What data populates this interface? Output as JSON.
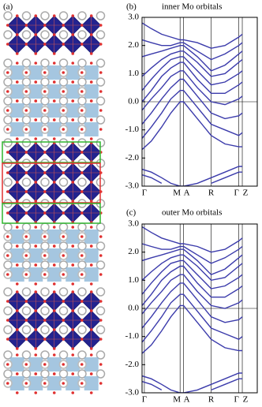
{
  "panel_a": {
    "label": "(a)"
  },
  "chart_data": [
    {
      "type": "line",
      "panel_label": "(b)",
      "title": "inner Mo orbitals",
      "color": "#3b3bab",
      "x": [
        0,
        0.08,
        0.17,
        0.25,
        0.33,
        0.36,
        0.48,
        0.6,
        0.72,
        0.84,
        0.87
      ],
      "xlim": [
        0,
        1
      ],
      "xticks": [
        {
          "value": 0.02,
          "label": "Γ"
        },
        {
          "value": 0.33,
          "label": "M"
        },
        {
          "value": 0.36,
          "label": "A"
        },
        {
          "value": 0.6,
          "label": "R"
        },
        {
          "value": 0.84,
          "label": "Γ"
        },
        {
          "value": 0.87,
          "label": "Z"
        }
      ],
      "ylim": [
        -3,
        3
      ],
      "yticks": [
        {
          "value": -3,
          "label": "-3.0"
        },
        {
          "value": -2,
          "label": "-2.0"
        },
        {
          "value": -1,
          "label": "-1.0"
        },
        {
          "value": 0,
          "label": "0.0"
        },
        {
          "value": 1,
          "label": "1.0"
        },
        {
          "value": 2,
          "label": "2.0"
        },
        {
          "value": 3,
          "label": "3.0"
        }
      ],
      "hlines": [
        0
      ],
      "series": [
        {
          "values": [
            2.8,
            2.6,
            2.4,
            2.3,
            2.2,
            2.2,
            2.1,
            1.9,
            2.0,
            2.3,
            2.4
          ]
        },
        {
          "values": [
            2.2,
            2.1,
            2.0,
            2.0,
            2.1,
            2.1,
            1.8,
            1.5,
            1.7,
            2.0,
            2.1
          ]
        },
        {
          "values": [
            1.6,
            1.7,
            1.8,
            1.9,
            2.0,
            2.0,
            1.6,
            1.1,
            1.3,
            1.7,
            1.8
          ]
        },
        {
          "values": [
            0.9,
            1.2,
            1.5,
            1.7,
            1.8,
            1.8,
            1.4,
            0.9,
            1.0,
            1.4,
            1.5
          ]
        },
        {
          "values": [
            0.4,
            0.8,
            1.2,
            1.5,
            1.6,
            1.6,
            1.1,
            0.6,
            0.7,
            1.0,
            1.1
          ]
        },
        {
          "values": [
            0.0,
            0.4,
            0.9,
            1.2,
            1.4,
            1.4,
            0.8,
            0.3,
            0.3,
            0.6,
            0.7
          ]
        },
        {
          "values": [
            -0.3,
            0.1,
            0.5,
            0.9,
            1.1,
            1.1,
            0.5,
            0.0,
            -0.1,
            0.1,
            0.2
          ]
        },
        {
          "values": [
            -0.8,
            -0.4,
            0.1,
            0.5,
            0.8,
            0.8,
            0.2,
            -0.4,
            -0.6,
            -0.5,
            -0.4
          ]
        },
        {
          "values": [
            -1.3,
            -0.9,
            -0.4,
            0.1,
            0.4,
            0.4,
            -0.2,
            -0.8,
            -1.0,
            -1.2,
            -1.1
          ]
        },
        {
          "values": [
            -1.7,
            -1.4,
            -0.9,
            -0.4,
            0.0,
            0.0,
            -0.6,
            -1.2,
            -1.5,
            -1.6,
            -1.6
          ]
        },
        {
          "values": [
            -2.4,
            -2.5,
            -2.7,
            -2.9,
            -3.0,
            -3.0,
            -2.9,
            -2.7,
            -2.5,
            -2.3,
            -2.3
          ]
        },
        {
          "values": [
            -2.6,
            -2.7,
            -2.9,
            null,
            null,
            null,
            null,
            -2.9,
            -2.7,
            -2.5,
            -2.5
          ]
        }
      ]
    },
    {
      "type": "line",
      "panel_label": "(c)",
      "title": "outer Mo orbitals",
      "color": "#3b3bab",
      "x": [
        0,
        0.08,
        0.17,
        0.25,
        0.33,
        0.36,
        0.48,
        0.6,
        0.72,
        0.84,
        0.87
      ],
      "xlim": [
        0,
        1
      ],
      "xticks": [
        {
          "value": 0.02,
          "label": "Γ"
        },
        {
          "value": 0.33,
          "label": "M"
        },
        {
          "value": 0.36,
          "label": "A"
        },
        {
          "value": 0.6,
          "label": "R"
        },
        {
          "value": 0.84,
          "label": "Γ"
        },
        {
          "value": 0.87,
          "label": "Z"
        }
      ],
      "ylim": [
        -3,
        3
      ],
      "yticks": [
        {
          "value": -3,
          "label": "-3.0"
        },
        {
          "value": -2,
          "label": "-2.0"
        },
        {
          "value": -1,
          "label": "-1.0"
        },
        {
          "value": 0,
          "label": "0.0"
        },
        {
          "value": 1,
          "label": "1.0"
        },
        {
          "value": 2,
          "label": "2.0"
        },
        {
          "value": 3,
          "label": "3.0"
        }
      ],
      "hlines": [
        0
      ],
      "series": [
        {
          "values": [
            2.9,
            2.7,
            2.5,
            2.4,
            2.3,
            2.3,
            2.2,
            2.0,
            2.1,
            2.4,
            2.5
          ]
        },
        {
          "values": [
            2.3,
            2.2,
            2.1,
            2.1,
            2.2,
            2.2,
            1.9,
            1.6,
            1.8,
            2.1,
            2.2
          ]
        },
        {
          "values": [
            1.7,
            1.8,
            1.9,
            2.0,
            2.1,
            2.1,
            1.7,
            1.2,
            1.4,
            1.8,
            1.9
          ]
        },
        {
          "values": [
            1.0,
            1.3,
            1.6,
            1.8,
            1.9,
            1.9,
            1.5,
            1.0,
            1.1,
            1.5,
            1.6
          ]
        },
        {
          "values": [
            0.5,
            0.9,
            1.3,
            1.6,
            1.7,
            1.7,
            1.2,
            0.7,
            0.8,
            1.1,
            1.2
          ]
        },
        {
          "values": [
            0.1,
            0.5,
            1.0,
            1.3,
            1.5,
            1.5,
            0.9,
            0.4,
            0.4,
            0.7,
            0.8
          ]
        },
        {
          "values": [
            -0.2,
            0.2,
            0.6,
            1.0,
            1.2,
            1.2,
            0.6,
            0.1,
            0.0,
            0.2,
            0.3
          ]
        },
        {
          "values": [
            -0.7,
            -0.3,
            0.2,
            0.6,
            0.9,
            0.9,
            0.3,
            -0.3,
            -0.5,
            -0.4,
            -0.3
          ]
        },
        {
          "values": [
            -1.2,
            -0.8,
            -0.3,
            0.2,
            0.5,
            0.5,
            -0.1,
            -0.7,
            -0.9,
            -1.1,
            -1.0
          ]
        },
        {
          "values": [
            -1.6,
            -1.3,
            -0.8,
            -0.3,
            0.1,
            0.1,
            -0.5,
            -1.1,
            -1.4,
            -1.5,
            -1.5
          ]
        },
        {
          "values": [
            -2.4,
            -2.5,
            -2.7,
            -2.9,
            -3.0,
            -3.0,
            -2.9,
            -2.7,
            -2.5,
            -2.3,
            -2.3
          ]
        },
        {
          "values": [
            -2.6,
            -2.7,
            -2.9,
            null,
            null,
            null,
            null,
            -2.9,
            -2.7,
            -2.5,
            -2.5
          ]
        }
      ]
    }
  ]
}
